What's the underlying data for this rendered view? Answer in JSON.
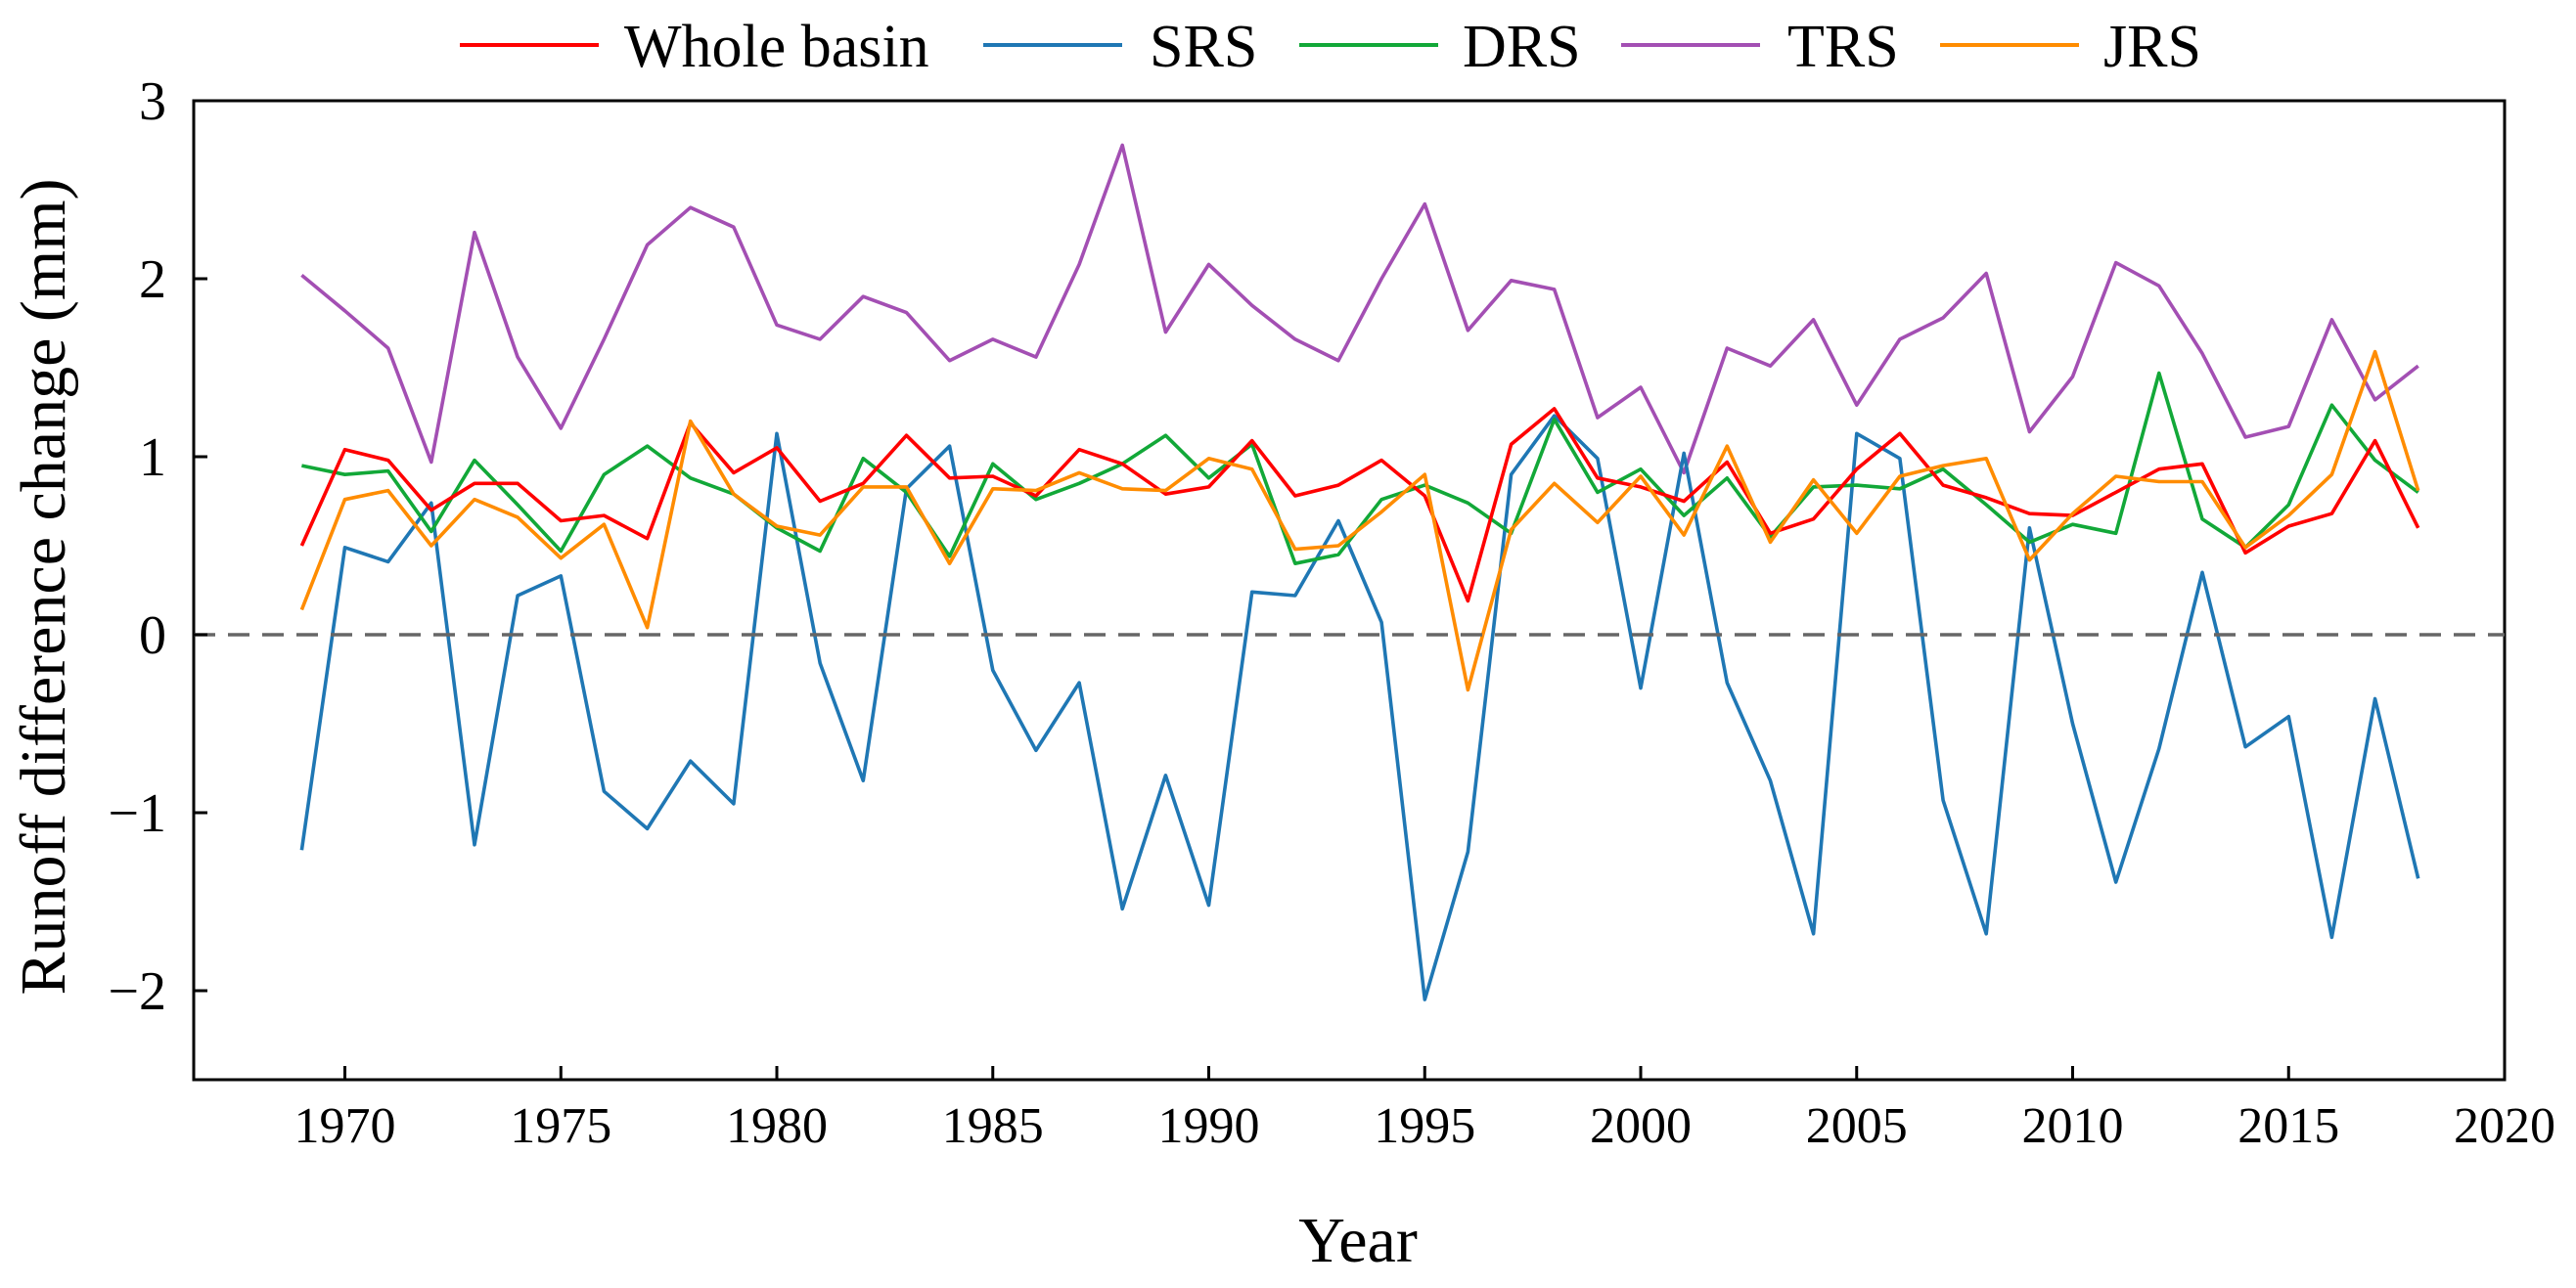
{
  "chart_data": {
    "type": "line",
    "title": "",
    "xlabel": "Year",
    "ylabel": "Runoff difference change (mm)",
    "xlim": [
      1966.5,
      2020
    ],
    "ylim": [
      -2.5,
      3
    ],
    "xticks": [
      1970,
      1975,
      1980,
      1985,
      1990,
      1995,
      2000,
      2005,
      2010,
      2015,
      2020
    ],
    "yticks": [
      -2,
      -1,
      0,
      1,
      2,
      3
    ],
    "ytick_labels": [
      "−2",
      "−1",
      "0",
      "1",
      "2",
      "3"
    ],
    "reference_line": {
      "y": 0,
      "style": "dashed",
      "color": "#666666"
    },
    "legend_position": "top, outside plot, horizontal",
    "grid": false,
    "x": [
      1969,
      1970,
      1971,
      1972,
      1973,
      1974,
      1975,
      1976,
      1977,
      1978,
      1979,
      1980,
      1981,
      1982,
      1983,
      1984,
      1985,
      1986,
      1987,
      1988,
      1989,
      1990,
      1991,
      1992,
      1993,
      1994,
      1995,
      1996,
      1997,
      1998,
      1999,
      2000,
      2001,
      2002,
      2003,
      2004,
      2005,
      2006,
      2007,
      2008,
      2009,
      2010,
      2011,
      2012,
      2013,
      2014,
      2015,
      2016,
      2017,
      2018
    ],
    "series": [
      {
        "name": "Whole basin",
        "color": "#ff0000",
        "values": [
          0.5,
          1.04,
          0.98,
          0.7,
          0.85,
          0.85,
          0.64,
          0.67,
          0.54,
          1.19,
          0.91,
          1.05,
          0.75,
          0.85,
          1.12,
          0.88,
          0.89,
          0.78,
          1.04,
          0.96,
          0.79,
          0.83,
          1.09,
          0.78,
          0.84,
          0.98,
          0.78,
          0.19,
          1.07,
          1.27,
          0.88,
          0.83,
          0.75,
          0.97,
          0.57,
          0.65,
          0.93,
          1.13,
          0.84,
          0.77,
          0.68,
          0.67,
          0.8,
          0.93,
          0.96,
          0.46,
          0.61,
          0.68,
          1.09,
          0.6
        ]
      },
      {
        "name": "SRS",
        "color": "#1f77b4",
        "values": [
          -1.21,
          0.49,
          0.41,
          0.74,
          -1.18,
          0.22,
          0.33,
          -0.88,
          -1.09,
          -0.71,
          -0.95,
          1.13,
          -0.16,
          -0.82,
          0.82,
          1.06,
          -0.2,
          -0.65,
          -0.27,
          -1.54,
          -0.79,
          -1.52,
          0.24,
          0.22,
          0.64,
          0.07,
          -2.05,
          -1.22,
          0.9,
          1.23,
          0.99,
          -0.3,
          1.02,
          -0.27,
          -0.82,
          -1.68,
          1.13,
          0.99,
          -0.93,
          -1.68,
          0.6,
          -0.5,
          -1.39,
          -0.64,
          0.35,
          -0.63,
          -0.46,
          -1.7,
          -0.36,
          -1.37
        ]
      },
      {
        "name": "DRS",
        "color": "#12a838",
        "values": [
          0.95,
          0.9,
          0.92,
          0.58,
          0.98,
          0.73,
          0.47,
          0.9,
          1.06,
          0.88,
          0.79,
          0.6,
          0.47,
          0.99,
          0.8,
          0.44,
          0.96,
          0.76,
          0.85,
          0.96,
          1.12,
          0.88,
          1.07,
          0.4,
          0.45,
          0.76,
          0.84,
          0.74,
          0.57,
          1.21,
          0.8,
          0.93,
          0.67,
          0.88,
          0.55,
          0.83,
          0.84,
          0.82,
          0.93,
          0.73,
          0.52,
          0.62,
          0.57,
          1.47,
          0.65,
          0.49,
          0.73,
          1.29,
          0.98,
          0.8
        ]
      },
      {
        "name": "TRS",
        "color": "#a34fb3",
        "values": [
          2.02,
          1.82,
          1.61,
          0.97,
          2.26,
          1.56,
          1.16,
          1.66,
          2.19,
          2.4,
          2.29,
          1.74,
          1.66,
          1.9,
          1.81,
          1.54,
          1.66,
          1.56,
          2.08,
          2.75,
          1.7,
          2.08,
          1.85,
          1.66,
          1.54,
          2.0,
          2.42,
          1.71,
          1.99,
          1.94,
          1.22,
          1.39,
          0.91,
          1.61,
          1.51,
          1.77,
          1.29,
          1.66,
          1.78,
          2.03,
          1.14,
          1.45,
          2.09,
          1.96,
          1.58,
          1.11,
          1.17,
          1.77,
          1.32,
          1.51
        ]
      },
      {
        "name": "JRS",
        "color": "#ff8c00",
        "values": [
          0.14,
          0.76,
          0.81,
          0.5,
          0.76,
          0.66,
          0.43,
          0.62,
          0.04,
          1.2,
          0.79,
          0.61,
          0.56,
          0.83,
          0.83,
          0.4,
          0.82,
          0.81,
          0.91,
          0.82,
          0.81,
          0.99,
          0.93,
          0.48,
          0.5,
          0.69,
          0.9,
          -0.31,
          0.59,
          0.85,
          0.63,
          0.89,
          0.56,
          1.06,
          0.52,
          0.87,
          0.57,
          0.89,
          0.95,
          0.99,
          0.42,
          0.68,
          0.89,
          0.86,
          0.86,
          0.49,
          0.67,
          0.9,
          1.59,
          0.81
        ]
      }
    ]
  }
}
